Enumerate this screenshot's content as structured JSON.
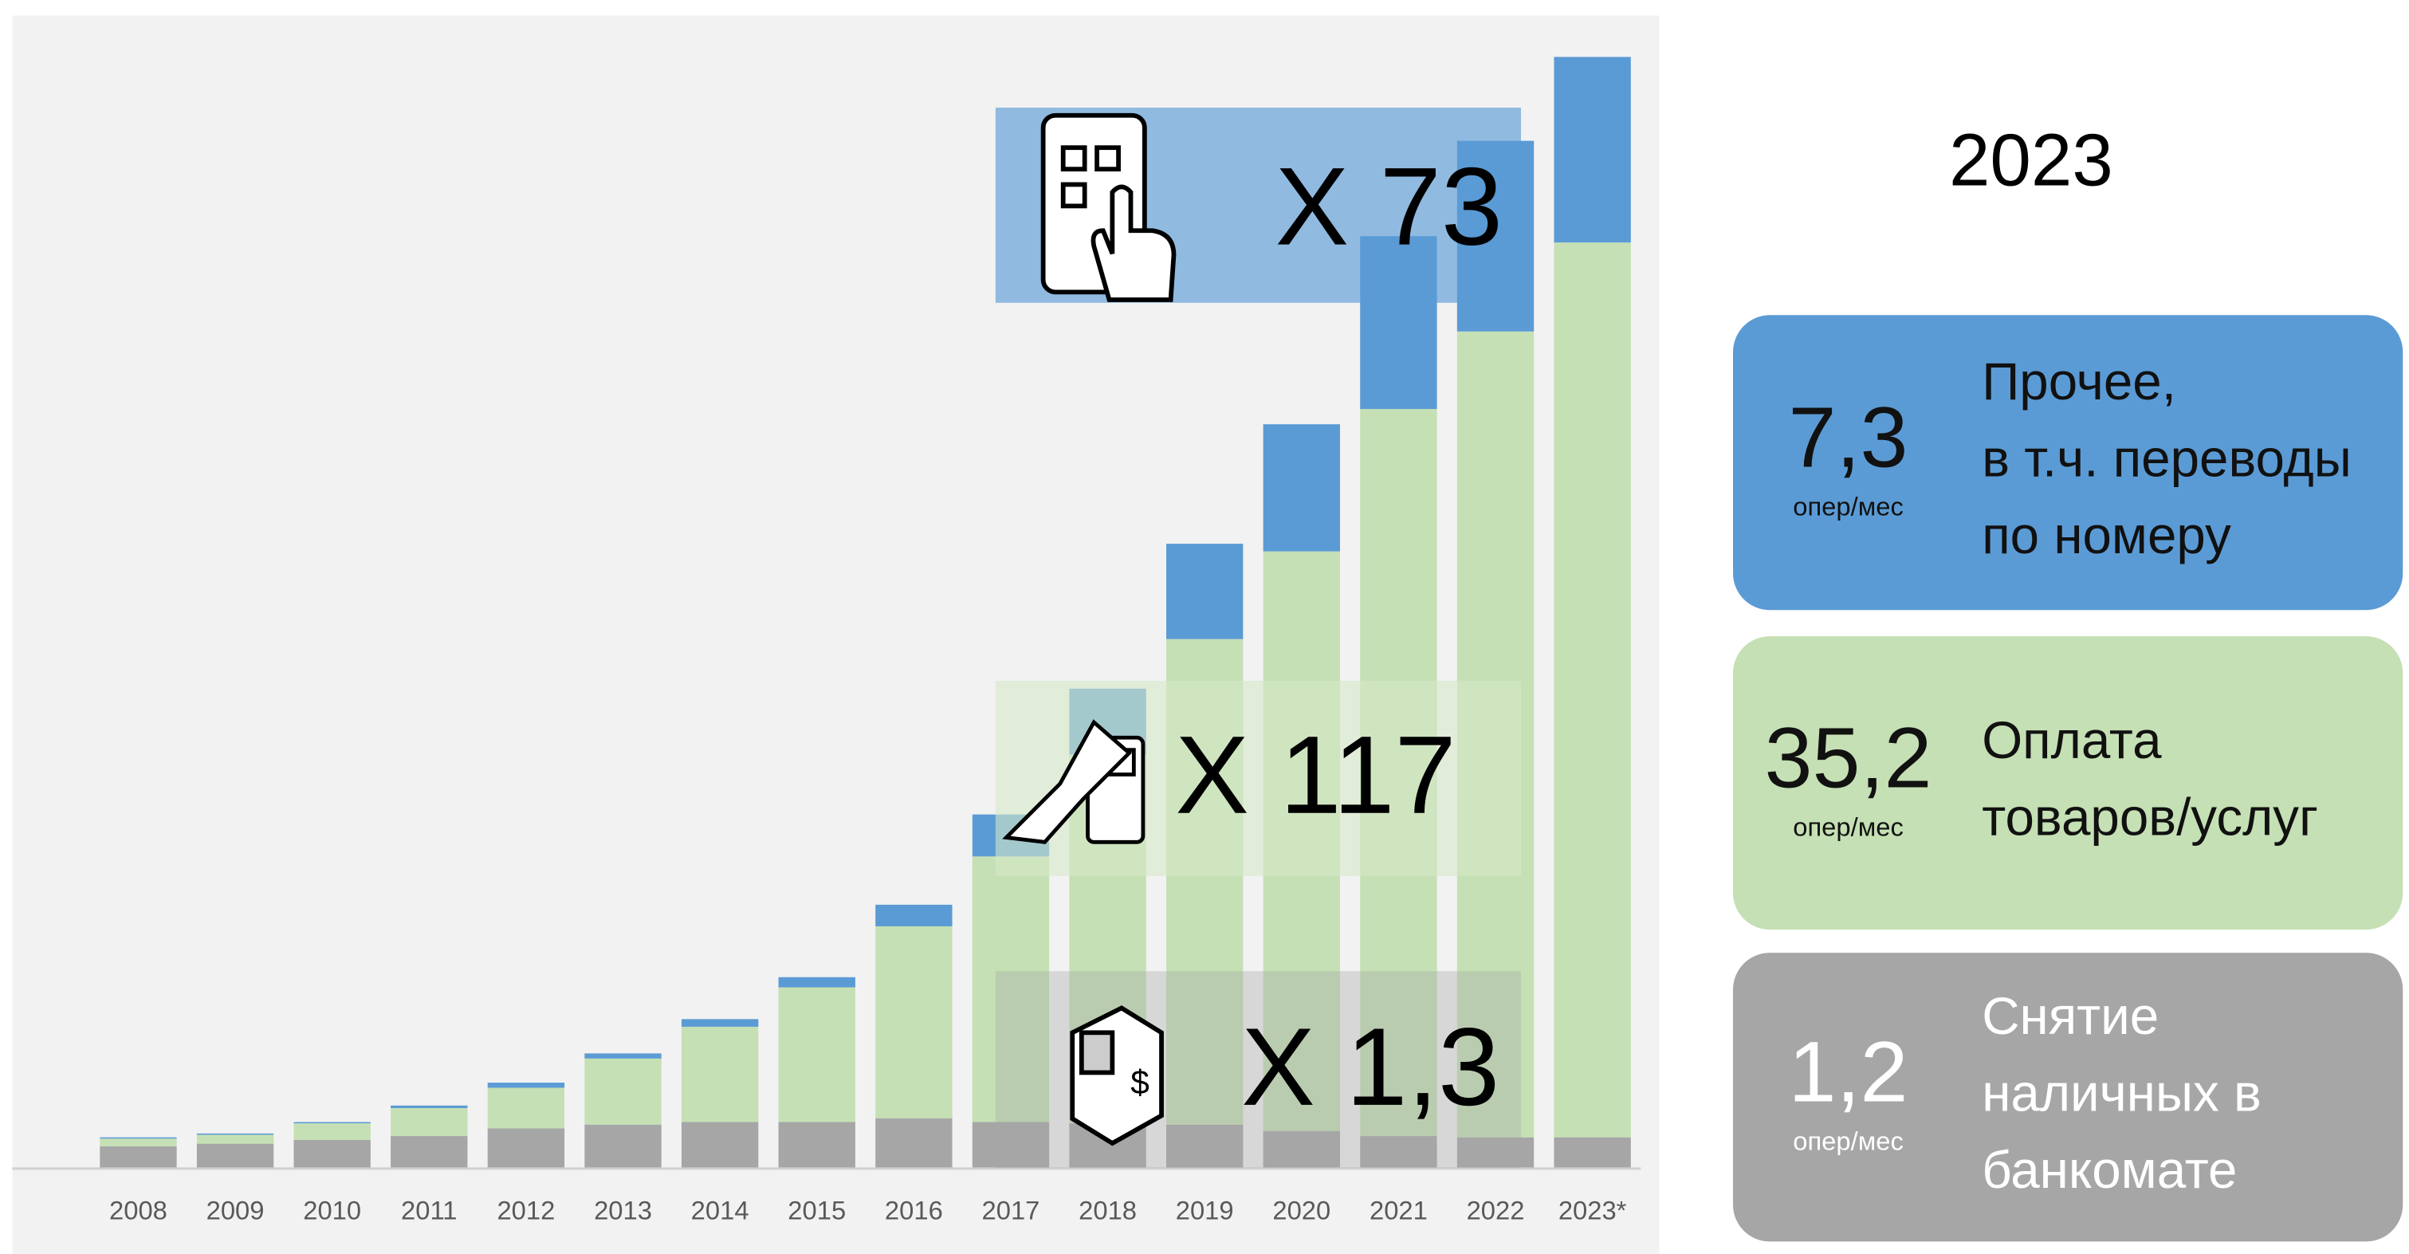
{
  "chart_data": {
    "type": "stacked_bar",
    "title": "2023",
    "categories": [
      "2008",
      "2009",
      "2010",
      "2011",
      "2012",
      "2013",
      "2014",
      "2015",
      "2016",
      "2017",
      "2018",
      "2019",
      "2020",
      "2021",
      "2022",
      "2023*"
    ],
    "series": [
      {
        "name": [
          "Снятие",
          "наличных в",
          "банкомате"
        ],
        "color": "#a6a6a6",
        "values": [
          0.85,
          0.95,
          1.1,
          1.25,
          1.55,
          1.7,
          1.8,
          1.8,
          1.95,
          1.8,
          1.75,
          1.7,
          1.45,
          1.25,
          1.2,
          1.2
        ],
        "summary_value": 1.2,
        "summary_label": "1,2",
        "unit": "опер/мес",
        "legend_color": "#a6a6a6",
        "legend_text_color": "#ffffff"
      },
      {
        "name": [
          "Оплата",
          "товаров/услуг"
        ],
        "color": "#c5e0b4",
        "values": [
          0.3,
          0.35,
          0.65,
          1.1,
          1.6,
          2.6,
          3.75,
          5.3,
          7.55,
          10.45,
          14.5,
          19.1,
          22.8,
          28.6,
          31.7,
          35.2
        ],
        "summary_value": 35.2,
        "summary_label": "35,2",
        "unit": "опер/мес",
        "legend_color": "#c5e0b4",
        "legend_text_color": "#111111"
      },
      {
        "name": [
          "Прочее,",
          "в т.ч. переводы",
          "по номеру"
        ],
        "color": "#5b9bd5",
        "values": [
          0.05,
          0.05,
          0.05,
          0.1,
          0.2,
          0.2,
          0.3,
          0.4,
          0.85,
          1.65,
          2.6,
          3.75,
          5.0,
          6.8,
          7.5,
          7.3
        ],
        "summary_value": 7.3,
        "summary_label": "7,3",
        "unit": "опер/мес",
        "legend_color": "#5b9bd5",
        "legend_text_color": "#111111"
      }
    ],
    "annotations": [
      "X 1,3",
      "X 117",
      "X 73"
    ],
    "ylim": [
      0,
      44
    ]
  }
}
